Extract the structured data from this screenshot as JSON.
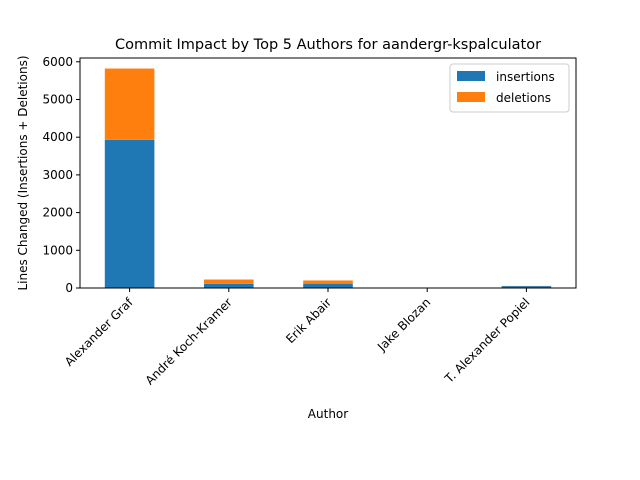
{
  "chart_data": {
    "type": "bar",
    "stacked": true,
    "title": "Commit Impact by Top 5 Authors for aandergr-kspalculator",
    "xlabel": "Author",
    "ylabel": "Lines Changed (Insertions + Deletions)",
    "categories": [
      "Alexander Graf",
      "André Koch-Kramer",
      "Erik Abair",
      "Jake Blozan",
      "T. Alexander Popiel"
    ],
    "series": [
      {
        "name": "insertions",
        "values": [
          3930,
          110,
          115,
          0,
          50
        ],
        "color": "#1f77b4"
      },
      {
        "name": "deletions",
        "values": [
          1890,
          115,
          85,
          0,
          5
        ],
        "color": "#ff7f0e"
      }
    ],
    "ylim": [
      0,
      6100
    ],
    "yticks": [
      0,
      1000,
      2000,
      3000,
      4000,
      5000,
      6000
    ],
    "ytick_labels": [
      "0",
      "1000",
      "2000",
      "3000",
      "4000",
      "5000",
      "6000"
    ],
    "grid": false,
    "legend_position": "upper-right"
  }
}
